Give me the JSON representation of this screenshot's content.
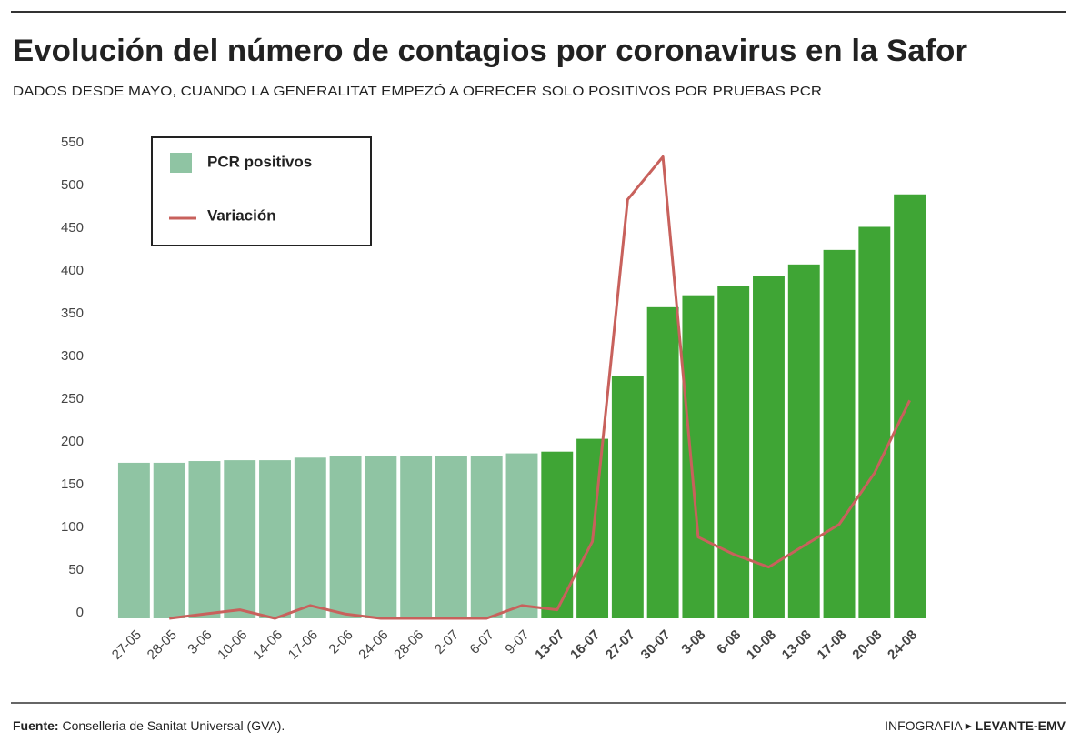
{
  "chart_data": {
    "type": "bar_line",
    "title": "Evolución del número de contagios por coronavirus en la Safor",
    "subtitle": "DADOS DESDE MAYO, CUANDO LA GENERALITAT EMPEZÓ A OFRECER SOLO POSITIVOS POR PRUEBAS PCR",
    "categories": [
      "27-05",
      "28-05",
      "3-06",
      "10-06",
      "14-06",
      "17-06",
      "2-06",
      "24-06",
      "28-06",
      "2-07",
      "6-07",
      "9-07",
      "13-07",
      "16-07",
      "27-07",
      "30-07",
      "3-08",
      "6-08",
      "10-08",
      "13-08",
      "17-08",
      "20-08",
      "24-08"
    ],
    "series": [
      {
        "name": "PCR positivos",
        "type": "bar",
        "color": "#8fc4a3",
        "highlight_color": "#3fa535",
        "highlight_start": "13-07",
        "values": [
          182,
          182,
          184,
          185,
          185,
          188,
          190,
          190,
          190,
          190,
          190,
          193,
          195,
          210,
          283,
          364,
          378,
          389,
          400,
          414,
          431,
          458,
          496
        ]
      },
      {
        "name": "Variación",
        "type": "line",
        "color": "#c8615c",
        "values": [
          null,
          0,
          5,
          10,
          0,
          15,
          5,
          0,
          0,
          0,
          0,
          15,
          10,
          90,
          490,
          540,
          95,
          75,
          60,
          85,
          110,
          170,
          255
        ]
      }
    ],
    "ylim": [
      0,
      550
    ],
    "yticks": [
      0,
      50,
      100,
      150,
      200,
      250,
      300,
      350,
      400,
      450,
      500,
      550
    ],
    "grid": false,
    "source_label": "Fuente:",
    "source": "Conselleria de Sanitat Universal (GVA).",
    "credit_label": "INFOGRAFIA",
    "credit": "LEVANTE-EMV"
  }
}
